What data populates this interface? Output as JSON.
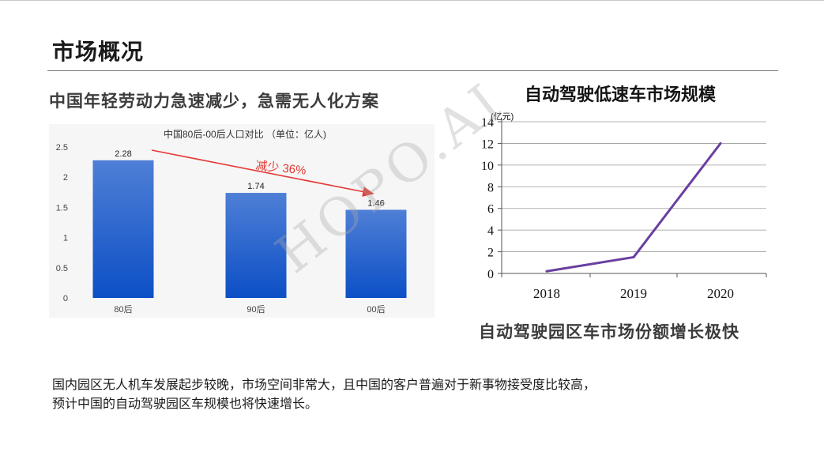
{
  "page": {
    "title": "市场概况",
    "left_heading": "中国年轻劳动力急速减少，急需无人化方案",
    "right_heading": "自动驾驶低速车市场规模",
    "right_subheading": "自动驾驶园区车市场份额增长极快",
    "paragraph_lines": [
      "国内园区无人机车发展起步较晚，市场空间非常大，且中国的客户普遍对于新事物接受度比较高，",
      "预计中国的自动驾驶园区车规模也将快速增长。"
    ],
    "watermark": "HOPO.AI"
  },
  "chart_data": [
    {
      "type": "bar",
      "title": "中国80后-00后人口对比 （单位：亿人)",
      "categories": [
        "80后",
        "90后",
        "00后"
      ],
      "values": [
        2.28,
        1.74,
        1.46
      ],
      "data_labels": [
        "2.28",
        "1.74",
        "1.46"
      ],
      "ylim": [
        0,
        2.5
      ],
      "yticks": [
        "0",
        "0.5",
        "1",
        "1.5",
        "2",
        "2.5"
      ],
      "grid": false,
      "annotation": "减少 36%",
      "colors": {
        "bar_top": "#4f7fd6",
        "bar_bottom": "#0c4fc6",
        "annotation": "#e53935"
      }
    },
    {
      "type": "line",
      "ylabel": "(亿元)",
      "x": [
        "2018",
        "2019",
        "2020"
      ],
      "values": [
        0.2,
        1.5,
        12
      ],
      "ylim": [
        0,
        14
      ],
      "yticks": [
        "0",
        "2",
        "4",
        "6",
        "8",
        "10",
        "12",
        "14"
      ],
      "grid": true,
      "colors": {
        "line": "#6a3fa0"
      }
    }
  ]
}
